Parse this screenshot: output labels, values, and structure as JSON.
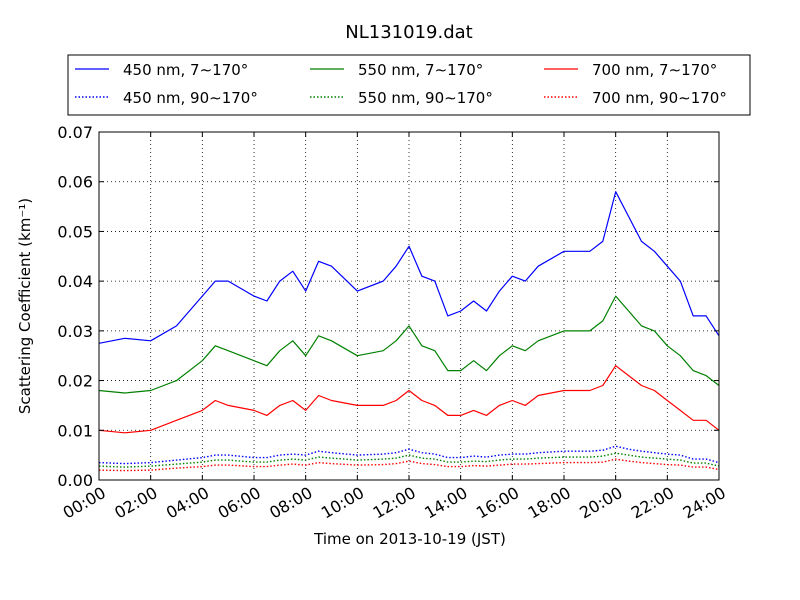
{
  "chart_data": {
    "type": "line",
    "title": "NL131019.dat",
    "xlabel": "Time on 2013-10-19 (JST)",
    "ylabel": "Scattering Coefficient (km⁻¹)",
    "xlim": [
      "00:00",
      "24:00"
    ],
    "ylim": [
      0.0,
      0.07
    ],
    "x_ticks": [
      "00:00",
      "02:00",
      "04:00",
      "06:00",
      "08:00",
      "10:00",
      "12:00",
      "14:00",
      "16:00",
      "18:00",
      "20:00",
      "22:00",
      "24:00"
    ],
    "y_ticks": [
      "0.00",
      "0.01",
      "0.02",
      "0.03",
      "0.04",
      "0.05",
      "0.06",
      "0.07"
    ],
    "grid": true,
    "legend_position": "top, outside plot",
    "x": [
      "00:00",
      "01:00",
      "02:00",
      "03:00",
      "04:00",
      "04:30",
      "05:00",
      "06:00",
      "06:30",
      "07:00",
      "07:30",
      "08:00",
      "08:30",
      "09:00",
      "10:00",
      "11:00",
      "11:30",
      "12:00",
      "12:30",
      "13:00",
      "13:30",
      "14:00",
      "14:30",
      "15:00",
      "15:30",
      "16:00",
      "16:30",
      "17:00",
      "18:00",
      "19:00",
      "19:30",
      "20:00",
      "20:30",
      "21:00",
      "21:30",
      "22:00",
      "22:30",
      "23:00",
      "23:30",
      "24:00"
    ],
    "series": [
      {
        "name": "450 nm, 7∼170°",
        "color": "#0000ff",
        "style": "solid",
        "values": [
          0.0275,
          0.0285,
          0.028,
          0.031,
          0.037,
          0.04,
          0.04,
          0.037,
          0.036,
          0.04,
          0.042,
          0.038,
          0.044,
          0.043,
          0.038,
          0.04,
          0.043,
          0.047,
          0.041,
          0.04,
          0.033,
          0.034,
          0.036,
          0.034,
          0.038,
          0.041,
          0.04,
          0.043,
          0.046,
          0.046,
          0.048,
          0.058,
          0.053,
          0.048,
          0.046,
          0.043,
          0.04,
          0.033,
          0.033,
          0.029
        ]
      },
      {
        "name": "550 nm, 7∼170°",
        "color": "#008000",
        "style": "solid",
        "values": [
          0.018,
          0.0175,
          0.018,
          0.02,
          0.024,
          0.027,
          0.026,
          0.024,
          0.023,
          0.026,
          0.028,
          0.025,
          0.029,
          0.028,
          0.025,
          0.026,
          0.028,
          0.031,
          0.027,
          0.026,
          0.022,
          0.022,
          0.024,
          0.022,
          0.025,
          0.027,
          0.026,
          0.028,
          0.03,
          0.03,
          0.032,
          0.037,
          0.034,
          0.031,
          0.03,
          0.027,
          0.025,
          0.022,
          0.021,
          0.019
        ]
      },
      {
        "name": "700 nm, 7∼170°",
        "color": "#ff0000",
        "style": "solid",
        "values": [
          0.01,
          0.0095,
          0.01,
          0.012,
          0.014,
          0.016,
          0.015,
          0.014,
          0.013,
          0.015,
          0.016,
          0.014,
          0.017,
          0.016,
          0.015,
          0.015,
          0.016,
          0.018,
          0.016,
          0.015,
          0.013,
          0.013,
          0.014,
          0.013,
          0.015,
          0.016,
          0.015,
          0.017,
          0.018,
          0.018,
          0.019,
          0.023,
          0.021,
          0.019,
          0.018,
          0.016,
          0.014,
          0.012,
          0.012,
          0.01
        ]
      },
      {
        "name": "450 nm, 90∼170°",
        "color": "#0000ff",
        "style": "dotted",
        "values": [
          0.0035,
          0.0033,
          0.0035,
          0.004,
          0.0045,
          0.005,
          0.005,
          0.0045,
          0.0045,
          0.005,
          0.0052,
          0.005,
          0.0058,
          0.0055,
          0.005,
          0.0052,
          0.0055,
          0.0062,
          0.0055,
          0.0052,
          0.0045,
          0.0045,
          0.0048,
          0.0046,
          0.005,
          0.0052,
          0.0052,
          0.0055,
          0.0058,
          0.0058,
          0.006,
          0.0068,
          0.0062,
          0.0058,
          0.0055,
          0.0052,
          0.005,
          0.0042,
          0.0042,
          0.0035
        ]
      },
      {
        "name": "550 nm, 90∼170°",
        "color": "#008000",
        "style": "dotted",
        "values": [
          0.0028,
          0.0026,
          0.0028,
          0.0032,
          0.0036,
          0.004,
          0.004,
          0.0036,
          0.0036,
          0.004,
          0.0042,
          0.004,
          0.0046,
          0.0044,
          0.004,
          0.0042,
          0.0044,
          0.005,
          0.0044,
          0.0042,
          0.0036,
          0.0036,
          0.0038,
          0.0037,
          0.004,
          0.0042,
          0.0042,
          0.0044,
          0.0046,
          0.0046,
          0.0048,
          0.0054,
          0.005,
          0.0046,
          0.0044,
          0.0042,
          0.004,
          0.0034,
          0.0034,
          0.0028
        ]
      },
      {
        "name": "700 nm, 90∼170°",
        "color": "#ff0000",
        "style": "dotted",
        "values": [
          0.002,
          0.0019,
          0.002,
          0.0024,
          0.0027,
          0.003,
          0.003,
          0.0027,
          0.0027,
          0.003,
          0.0032,
          0.003,
          0.0035,
          0.0033,
          0.003,
          0.0031,
          0.0033,
          0.0038,
          0.0033,
          0.0031,
          0.0027,
          0.0027,
          0.0029,
          0.0028,
          0.003,
          0.0032,
          0.0032,
          0.0033,
          0.0035,
          0.0035,
          0.0036,
          0.0042,
          0.0038,
          0.0035,
          0.0033,
          0.0031,
          0.003,
          0.0026,
          0.0026,
          0.0021
        ]
      }
    ]
  }
}
